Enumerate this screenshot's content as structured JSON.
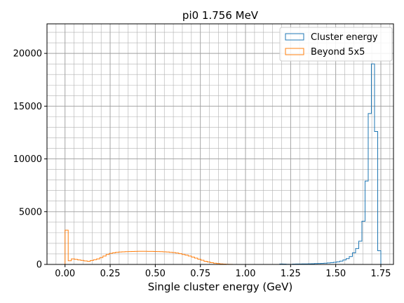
{
  "chart_data": {
    "type": "histogram",
    "title": "pi0 1.756 MeV",
    "xlabel": "Single cluster energy (GeV)",
    "ylabel": "",
    "xlim": [
      -0.1,
      1.82
    ],
    "ylim": [
      0,
      22800
    ],
    "xticks": [
      0.0,
      0.25,
      0.5,
      0.75,
      1.0,
      1.25,
      1.5,
      1.75
    ],
    "xtick_labels": [
      "0.00",
      "0.25",
      "0.50",
      "0.75",
      "1.00",
      "1.25",
      "1.50",
      "1.75"
    ],
    "yticks": [
      0,
      5000,
      10000,
      15000,
      20000
    ],
    "ytick_labels": [
      "0",
      "5000",
      "10000",
      "15000",
      "20000"
    ],
    "grid": true,
    "minor_grid": true,
    "legend_position": "top-right",
    "bin_width": 0.0175,
    "series": [
      {
        "name": "Cluster energy",
        "color": "#1f77b4",
        "bin_start": 1.19,
        "values": [
          40,
          30,
          20,
          10,
          30,
          40,
          40,
          50,
          50,
          60,
          70,
          80,
          90,
          100,
          120,
          140,
          170,
          200,
          250,
          320,
          420,
          550,
          750,
          1100,
          1500,
          2200,
          4100,
          7900,
          14300,
          19000,
          12600,
          1300,
          0
        ]
      },
      {
        "name": "Beyond 5x5",
        "color": "#ff7f0e",
        "bin_start": 0.0,
        "values": [
          3250,
          350,
          520,
          480,
          420,
          380,
          330,
          300,
          370,
          450,
          520,
          650,
          800,
          950,
          1050,
          1100,
          1150,
          1180,
          1200,
          1210,
          1220,
          1230,
          1240,
          1250,
          1250,
          1250,
          1240,
          1240,
          1230,
          1220,
          1210,
          1200,
          1180,
          1150,
          1120,
          1080,
          1020,
          950,
          880,
          800,
          700,
          600,
          500,
          400,
          300,
          230,
          170,
          120,
          80,
          50,
          30,
          20,
          10,
          0,
          0,
          0,
          0,
          0,
          0,
          0
        ]
      }
    ]
  }
}
